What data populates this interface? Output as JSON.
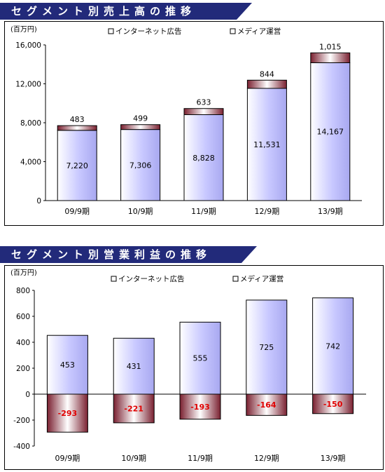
{
  "chart_data": [
    {
      "type": "bar",
      "stacked": true,
      "title": "セグメント別売上高の推移",
      "unit": "(百万円)",
      "categories": [
        "09/9期",
        "10/9期",
        "11/9期",
        "12/9期",
        "13/9期"
      ],
      "series": [
        {
          "name": "インターネット広告",
          "values": [
            7220,
            7306,
            8828,
            11531,
            14167
          ],
          "color": "#c8c8ff"
        },
        {
          "name": "メディア運営",
          "values": [
            483,
            499,
            633,
            844,
            1015
          ],
          "color": "#7a2030"
        }
      ],
      "value_labels": [
        [
          "7,220",
          "7,306",
          "8,828",
          "11,531",
          "14,167"
        ],
        [
          "483",
          "499",
          "633",
          "844",
          "1,015"
        ]
      ],
      "yticks": [
        "16,000",
        "12,000",
        "8,000",
        "4,000",
        "0"
      ],
      "ylim": [
        0,
        16000
      ],
      "legend": "top"
    },
    {
      "type": "bar",
      "stacked": true,
      "title": "セグメント別営業利益の推移",
      "unit": "(百万円)",
      "categories": [
        "09/9期",
        "10/9期",
        "11/9期",
        "12/9期",
        "13/9期"
      ],
      "series": [
        {
          "name": "インターネット広告",
          "values": [
            453,
            431,
            555,
            725,
            742
          ],
          "color": "#c8c8ff"
        },
        {
          "name": "メディア運営",
          "values": [
            -293,
            -221,
            -193,
            -164,
            -150
          ],
          "color": "#7a2030"
        }
      ],
      "value_labels": [
        [
          "453",
          "431",
          "555",
          "725",
          "742"
        ],
        [
          "-293",
          "-221",
          "-193",
          "-164",
          "-150"
        ]
      ],
      "yticks": [
        "800",
        "600",
        "400",
        "200",
        "0",
        "-200",
        "-400"
      ],
      "ylim": [
        -400,
        800
      ],
      "legend": "top"
    }
  ]
}
